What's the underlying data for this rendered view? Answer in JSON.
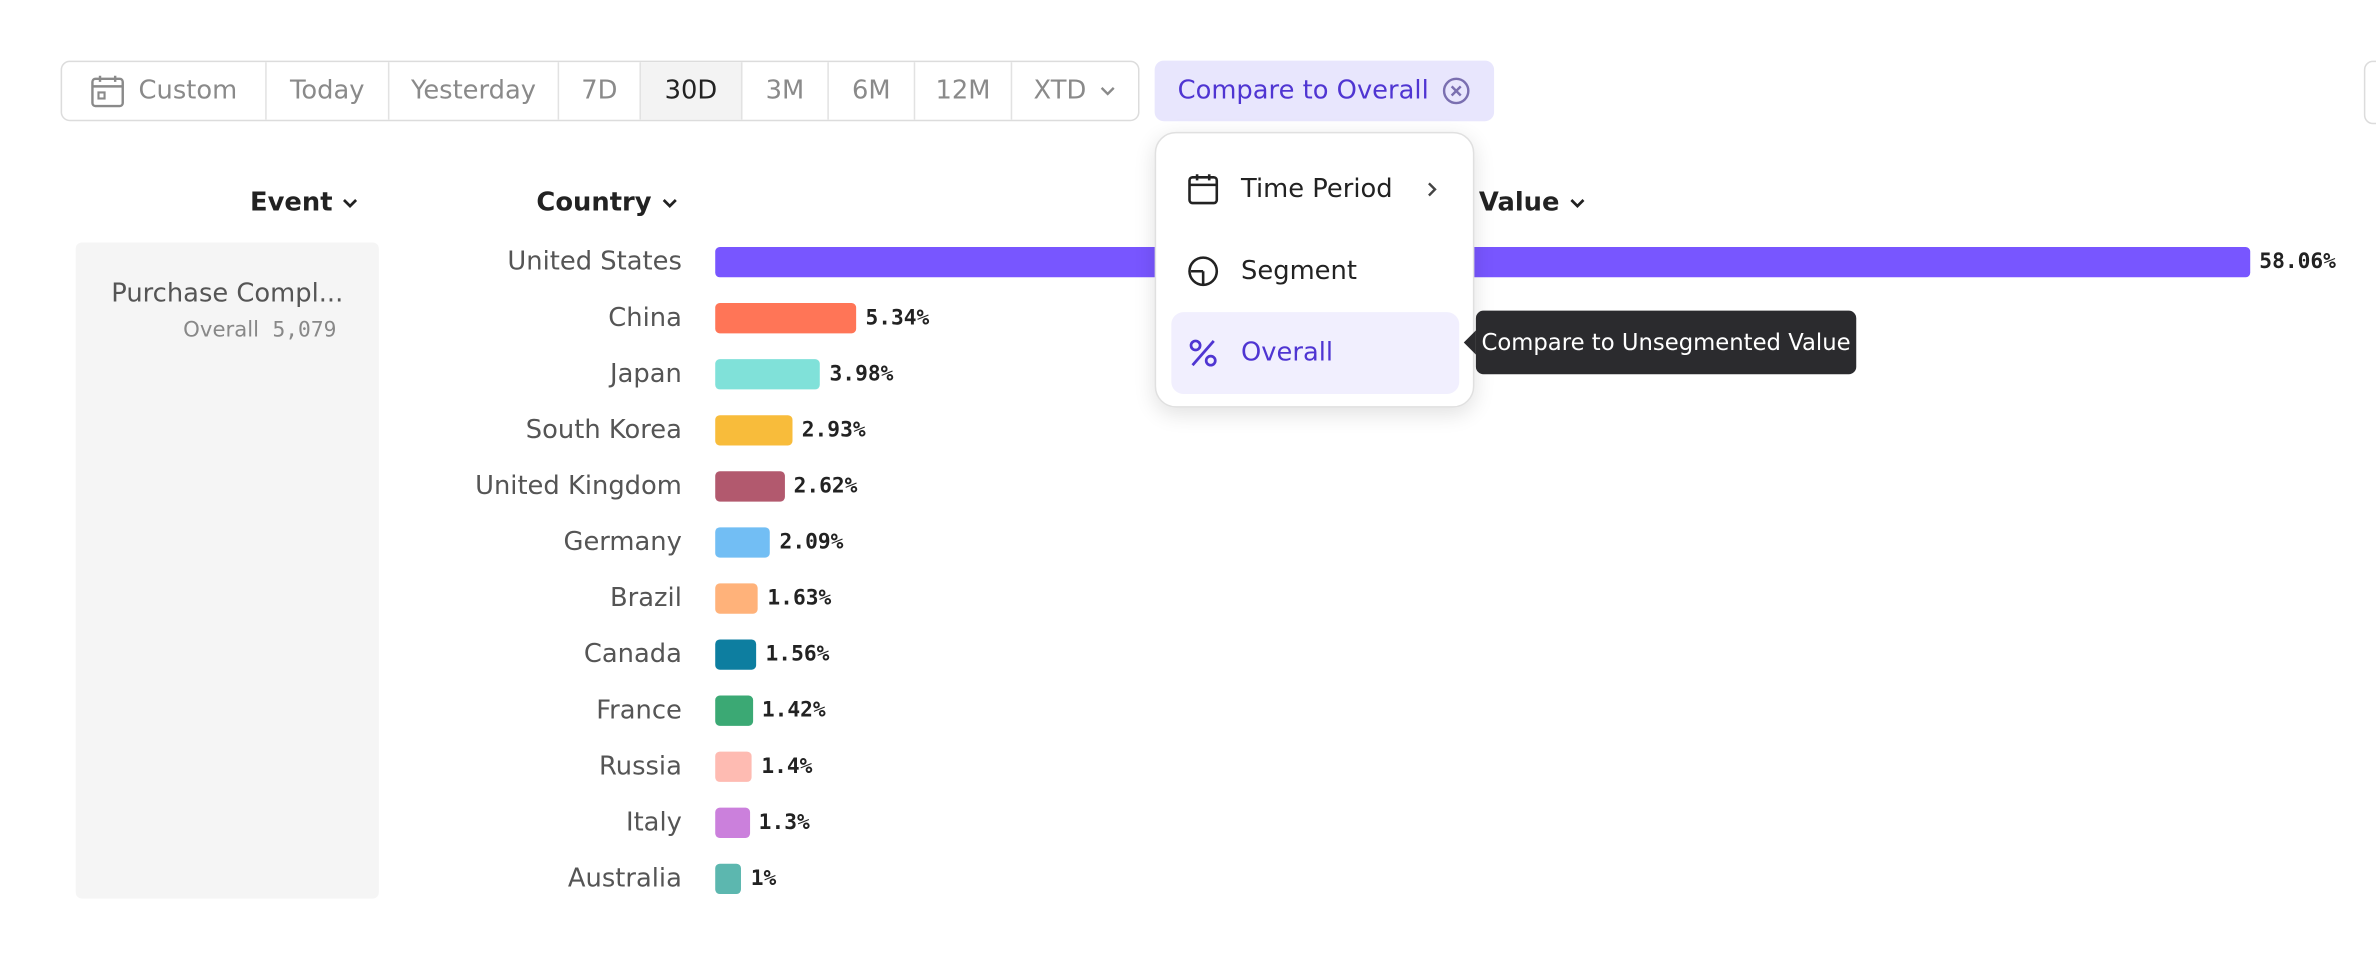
{
  "toolbar": {
    "date_ranges": [
      "Custom",
      "Today",
      "Yesterday",
      "7D",
      "30D",
      "3M",
      "6M",
      "12M",
      "XTD"
    ]
  },
  "compare_button": "Compare to Overall",
  "menu": {
    "items": [
      "Time Period",
      "Segment",
      "Overall"
    ]
  },
  "tooltip": "Compare to Unsegmented Value",
  "columns": [
    "Event",
    "Country",
    "Value"
  ],
  "event": {
    "name": "Purchase Compl...",
    "label": "Overall",
    "count": "5,079"
  },
  "chart_data": {
    "type": "bar",
    "orientation": "horizontal",
    "categories": [
      "United States",
      "China",
      "Japan",
      "South Korea",
      "United Kingdom",
      "Germany",
      "Brazil",
      "Canada",
      "France",
      "Russia",
      "Italy",
      "Australia"
    ],
    "series": [
      {
        "values": [
          58.06,
          5.34,
          3.98,
          2.93,
          2.62,
          2.09,
          1.63,
          1.56,
          1.42,
          1.4,
          1.3,
          1
        ],
        "value_labels": [
          "58.06%",
          "5.34%",
          "3.98%",
          "2.93%",
          "2.62%",
          "2.09%",
          "1.63%",
          "1.56%",
          "1.42%",
          "1.4%",
          "1.3%",
          "1%"
        ],
        "colors": [
          "#7856ff",
          "#ff7557",
          "#80e1d9",
          "#f8bc3b",
          "#b2596e",
          "#72bef4",
          "#ffb27a",
          "#0d7ea0",
          "#3ba974",
          "#febbb2",
          "#cb80dc",
          "#5cb7af"
        ]
      }
    ]
  }
}
